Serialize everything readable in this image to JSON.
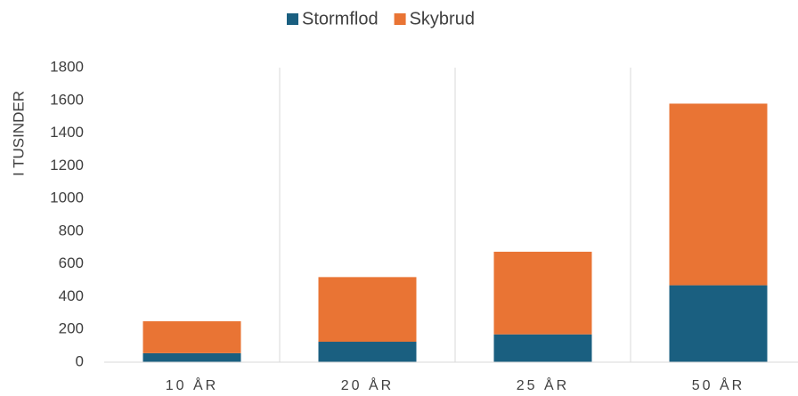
{
  "chart_data": {
    "type": "stacked_bar",
    "y_label": "I TUSINDER",
    "categories": [
      "10 ÅR",
      "20 ÅR",
      "25 ÅR",
      "50 ÅR"
    ],
    "series": [
      {
        "name": "Stormflod",
        "color": "#1a5f80",
        "values": [
          55,
          125,
          170,
          470
        ]
      },
      {
        "name": "Skybrud",
        "color": "#e97434",
        "values": [
          195,
          395,
          505,
          1110
        ]
      }
    ],
    "ylim": [
      0,
      1800
    ],
    "yticks": [
      0,
      200,
      400,
      600,
      800,
      1000,
      1200,
      1400,
      1600,
      1800
    ],
    "legend": "top"
  }
}
